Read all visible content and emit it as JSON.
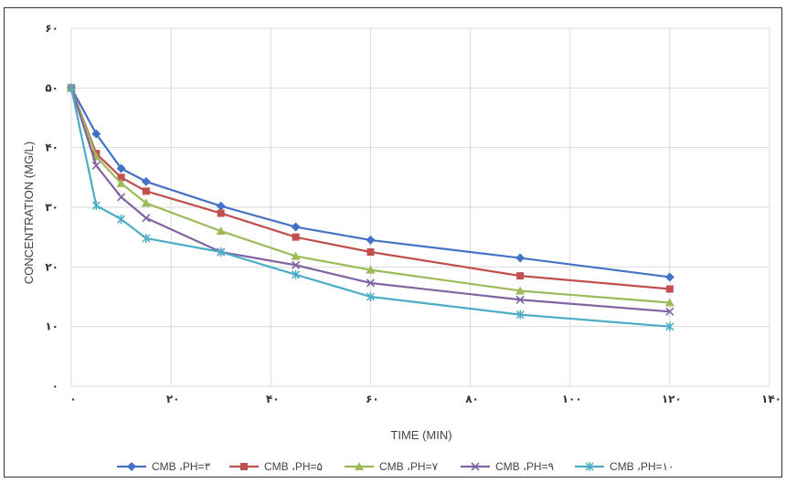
{
  "chart_data": {
    "type": "line",
    "xlabel": "TIME (MIN)",
    "ylabel": "CONCENTRATION (MG/L)",
    "xlim": [
      0,
      140
    ],
    "ylim": [
      0,
      60
    ],
    "x_ticks": [
      0,
      20,
      40,
      60,
      80,
      100,
      120,
      140
    ],
    "y_ticks": [
      0,
      10,
      20,
      30,
      40,
      50,
      60
    ],
    "x_tick_labels": [
      "٠",
      "٢٠",
      "۴٠",
      "۶٠",
      "٨٠",
      "١٠٠",
      "١٢٠",
      "١۴٠"
    ],
    "y_tick_labels": [
      "٠",
      "١٠",
      "٢٠",
      "٣٠",
      "۴٠",
      "۵٠",
      "۶٠"
    ],
    "grid": true,
    "legend_position": "bottom",
    "series": [
      {
        "name": "CMB ،PH=٣",
        "color": "#4472C4",
        "marker": "diamond",
        "x": [
          0,
          5,
          10,
          15,
          30,
          45,
          60,
          90,
          120
        ],
        "values": [
          50,
          42.3,
          36.5,
          34.3,
          30.2,
          26.7,
          24.5,
          21.5,
          18.3
        ]
      },
      {
        "name": "CMB ،PH=۵",
        "color": "#C0504D",
        "marker": "square",
        "x": [
          0,
          5,
          10,
          15,
          30,
          45,
          60,
          90,
          120
        ],
        "values": [
          50,
          39.0,
          35.0,
          32.7,
          29.0,
          25.0,
          22.5,
          18.5,
          16.3
        ]
      },
      {
        "name": "CMB ،PH=٧",
        "color": "#9BBB59",
        "marker": "triangle",
        "x": [
          0,
          5,
          10,
          15,
          30,
          45,
          60,
          90,
          120
        ],
        "values": [
          50,
          38.5,
          34.0,
          30.7,
          26.0,
          21.8,
          19.5,
          16.0,
          14.0
        ]
      },
      {
        "name": "CMB ،PH=٩",
        "color": "#8064A2",
        "marker": "x",
        "x": [
          0,
          5,
          10,
          15,
          30,
          45,
          60,
          90,
          120
        ],
        "values": [
          50,
          37.0,
          31.7,
          28.2,
          22.5,
          20.3,
          17.3,
          14.5,
          12.5
        ]
      },
      {
        "name": "CMB ،PH=١٠",
        "color": "#4BACC6",
        "marker": "star",
        "x": [
          0,
          5,
          10,
          15,
          30,
          45,
          60,
          90,
          120
        ],
        "values": [
          50,
          30.3,
          28.0,
          24.8,
          22.5,
          18.7,
          15.0,
          12.0,
          10.0
        ]
      }
    ]
  }
}
